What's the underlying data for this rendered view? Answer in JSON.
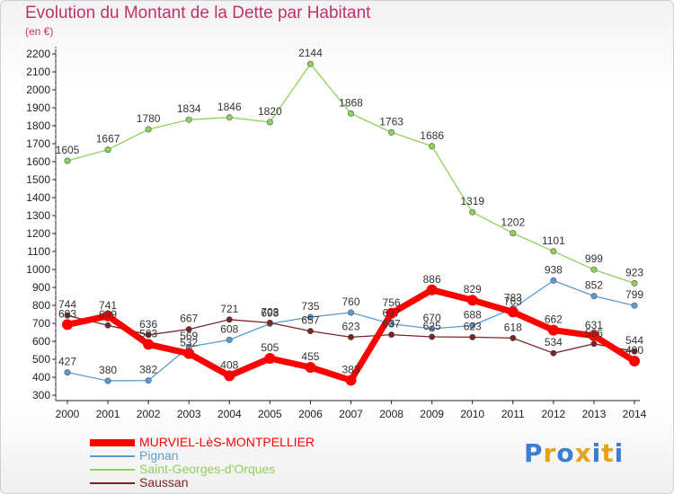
{
  "header": {
    "title": "Evolution du Montant de la Dette par Habitant",
    "subtitle": "(en €)"
  },
  "logo": {
    "text": "Proxiti"
  },
  "chart_data": {
    "type": "line",
    "title": "Evolution du Montant de la Dette par Habitant",
    "subtitle": "(en €)",
    "xlabel": "",
    "ylabel": "",
    "x": [
      "2000",
      "2001",
      "2002",
      "2003",
      "2004",
      "2005",
      "2006",
      "2007",
      "2008",
      "2009",
      "2010",
      "2011",
      "2012",
      "2013",
      "2014"
    ],
    "ylim": [
      300,
      2200
    ],
    "yticks": [
      300,
      400,
      500,
      600,
      700,
      800,
      900,
      1000,
      1100,
      1200,
      1300,
      1400,
      1500,
      1600,
      1700,
      1800,
      1900,
      2000,
      2100,
      2200
    ],
    "grid": false,
    "legend_position": "bottom-left",
    "series": [
      {
        "name": "MURVIEL-LèS-MONTPELLIER",
        "color": "#ff0000",
        "emphasis": true,
        "values": [
          693,
          741,
          583,
          532,
          408,
          505,
          455,
          383,
          756,
          886,
          829,
          763,
          662,
          631,
          490
        ]
      },
      {
        "name": "Pignan",
        "color": "#5b9bd5",
        "values": [
          427,
          380,
          382,
          569,
          608,
          698,
          735,
          760,
          697,
          670,
          688,
          783,
          938,
          852,
          799
        ]
      },
      {
        "name": "Saint-Georges-d'Orques",
        "color": "#8ed25a",
        "values": [
          1605,
          1667,
          1780,
          1834,
          1846,
          1820,
          2144,
          1868,
          1763,
          1686,
          1319,
          1202,
          1101,
          999,
          923
        ]
      },
      {
        "name": "Saussan",
        "color": "#7a2424",
        "values": [
          744,
          689,
          636,
          667,
          721,
          703,
          657,
          623,
          637,
          625,
          623,
          618,
          534,
          586,
          544
        ]
      }
    ]
  }
}
